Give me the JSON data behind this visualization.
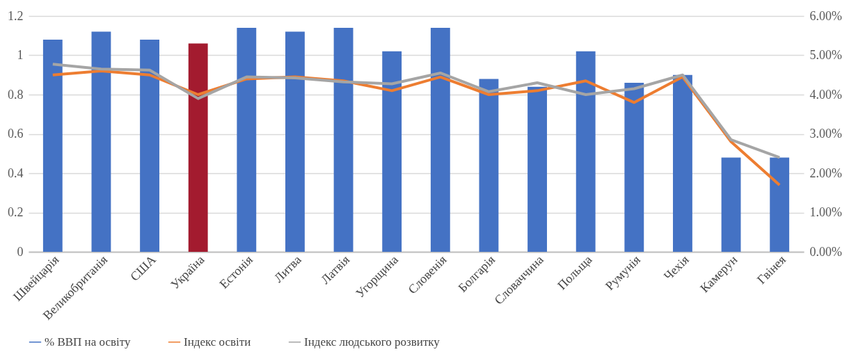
{
  "chart_data": {
    "type": "bar",
    "categories": [
      "Швейцарія",
      "Великобританія",
      "США",
      "Україна",
      "Естонія",
      "Литва",
      "Латвія",
      "Угорщина",
      "Словенія",
      "Болгарія",
      "Словаччина",
      "Польща",
      "Румунія",
      "Чехія",
      "Камерун",
      "Гвінея"
    ],
    "series": [
      {
        "name": "% ВВП на освіту",
        "axis": "y2",
        "color": "#4472c4",
        "colors": [
          "#4472c4",
          "#4472c4",
          "#4472c4",
          "#a31b2f",
          "#4472c4",
          "#4472c4",
          "#4472c4",
          "#4472c4",
          "#4472c4",
          "#4472c4",
          "#4472c4",
          "#4472c4",
          "#4472c4",
          "#4472c4",
          "#4472c4",
          "#4472c4"
        ],
        "values": [
          5.4,
          5.6,
          5.4,
          5.3,
          5.7,
          5.6,
          5.7,
          5.1,
          5.7,
          4.4,
          4.2,
          5.1,
          4.3,
          4.5,
          2.4,
          2.4
        ]
      },
      {
        "name": "Індекс освіти",
        "type": "line",
        "color": "#ed7d31",
        "values": [
          0.9,
          0.92,
          0.9,
          0.8,
          0.88,
          0.89,
          0.87,
          0.82,
          0.89,
          0.8,
          0.82,
          0.87,
          0.76,
          0.89,
          0.56,
          0.34
        ]
      },
      {
        "name": "Індекс людського розвитку",
        "type": "line",
        "color": "#a5a5a5",
        "values": [
          0.955,
          0.93,
          0.925,
          0.78,
          0.89,
          0.885,
          0.865,
          0.855,
          0.91,
          0.815,
          0.86,
          0.8,
          0.83,
          0.9,
          0.57,
          0.48
        ]
      }
    ],
    "ylim": [
      0,
      1.2
    ],
    "yticks": [
      0,
      0.2,
      0.4,
      0.6,
      0.8,
      1,
      1.2
    ],
    "y2lim": [
      0,
      6
    ],
    "y2ticks": [
      {
        "value": 0,
        "label": "0.00%"
      },
      {
        "value": 1,
        "label": "1.00%"
      },
      {
        "value": 2,
        "label": "2.00%"
      },
      {
        "value": 3,
        "label": "3.00%"
      },
      {
        "value": 4,
        "label": "4.00%"
      },
      {
        "value": 5,
        "label": "5.00%"
      },
      {
        "value": 6,
        "label": "6.00%"
      }
    ],
    "grid": "y",
    "legend": "bottom"
  }
}
